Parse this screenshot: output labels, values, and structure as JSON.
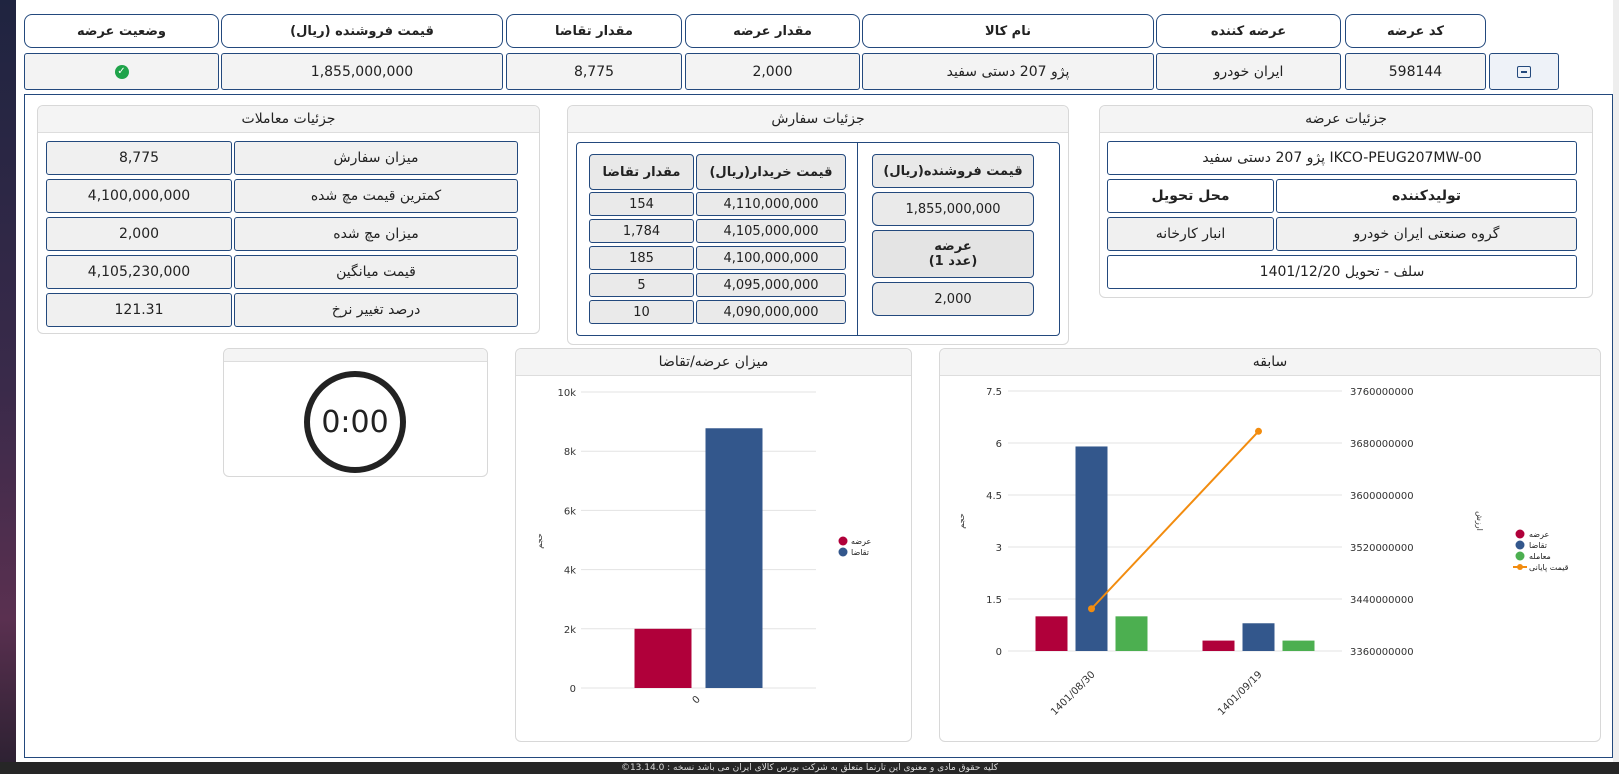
{
  "offer_table": {
    "headers": {
      "offer_status": "وضعیت عرضه",
      "seller_price": "قیمت فروشنده (ریال)",
      "demand_qty": "مقدار تقاضا",
      "offer_qty": "مقدار عرضه",
      "product_name": "نام کالا",
      "supplier": "عرضه کننده",
      "offer_code": "کد عرضه"
    },
    "row": {
      "status_icon": "check-circle-icon",
      "seller_price": "1,855,000,000",
      "demand_qty": "8,775",
      "offer_qty": "2,000",
      "product_name": "پژو 207 دستی سفید",
      "supplier": "ایران خودرو",
      "offer_code": "598144",
      "toggle_icon": "minus-square-icon"
    }
  },
  "offer_details": {
    "title": "جزئیات عرضه",
    "product_code": "پژو 207 دستی سفید IKCO-PEUG207MW-00",
    "producer_label": "تولیدکننده",
    "delivery_label": "محل تحویل",
    "producer_value": "گروه صنعتی ایران خودرو",
    "delivery_value": "انبار کارخانه",
    "settlement": "سلف - تحویل 1401/12/20"
  },
  "order_details": {
    "title": "جزئیات سفارش",
    "seller_price_header": "قیمت فروشنده(ریال)",
    "seller_price_value": "1,855,000,000",
    "offer_header_line1": "عرضه",
    "offer_header_line2": "(1 عدد)",
    "offer_value": "2,000",
    "buyer_price_header": "قیمت خریدار(ریال)",
    "demand_header": "مقدار تقاضا",
    "rows": [
      {
        "price": "4,110,000,000",
        "qty": "154"
      },
      {
        "price": "4,105,000,000",
        "qty": "1,784"
      },
      {
        "price": "4,100,000,000",
        "qty": "185"
      },
      {
        "price": "4,095,000,000",
        "qty": "5"
      },
      {
        "price": "4,090,000,000",
        "qty": "10"
      }
    ]
  },
  "trade_details": {
    "title": "جزئیات معاملات",
    "rows": [
      {
        "label": "میزان سفارش",
        "value": "8,775"
      },
      {
        "label": "کمترین قیمت مچ شده",
        "value": "4,100,000,000"
      },
      {
        "label": "میزان مچ شده",
        "value": "2,000"
      },
      {
        "label": "قیمت میانگین",
        "value": "4,105,230,000"
      },
      {
        "label": "درصد تغییر نرخ",
        "value": "121.31"
      }
    ]
  },
  "timer": {
    "value": "0:00"
  },
  "supply_demand_chart": {
    "title": "میزان عرضه/تقاضا"
  },
  "history_chart": {
    "title": "سابقه"
  },
  "footer": {
    "text": "©کلیه حقوق مادی و معنوی این تارنما متعلق به شرکت بورس کالای ایران می باشد نسخه : 13.14.0"
  },
  "colors": {
    "border": "#23497d",
    "offer": "#b0003a",
    "demand": "#33578c",
    "deal": "#4caf50",
    "price": "#f28c0f"
  },
  "chart_data": [
    {
      "type": "bar",
      "title": "میزان عرضه/تقاضا",
      "categories": [
        "0"
      ],
      "series": [
        {
          "name": "عرضه",
          "values": [
            2000
          ],
          "color": "#b0003a"
        },
        {
          "name": "تقاضا",
          "values": [
            8775
          ],
          "color": "#33578c"
        }
      ],
      "ylabel": "حجم",
      "ylim": [
        0,
        10000
      ],
      "yticks": [
        0,
        2000,
        4000,
        6000,
        8000,
        10000
      ],
      "ytick_labels": [
        "0",
        "2k",
        "4k",
        "6k",
        "8k",
        "10k"
      ],
      "legend": "right"
    },
    {
      "type": "bar",
      "title": "سابقه",
      "categories": [
        "1401/08/30",
        "1401/09/19"
      ],
      "series": [
        {
          "name": "عرضه",
          "values": [
            1,
            0.3
          ],
          "color": "#b0003a"
        },
        {
          "name": "تقاضا",
          "values": [
            5.9,
            0.8
          ],
          "color": "#33578c"
        },
        {
          "name": "معامله",
          "values": [
            1,
            0.3
          ],
          "color": "#4caf50"
        }
      ],
      "line_series": {
        "name": "قیمت پایانی",
        "values": [
          3425000000,
          3698000000
        ],
        "color": "#f28c0f"
      },
      "ylabel": "حجم",
      "ylabel_right": "ارزش",
      "ylim": [
        0,
        7.5
      ],
      "yticks": [
        0,
        1.5,
        3,
        4.5,
        6,
        7.5
      ],
      "ytick_labels": [
        "0",
        "1.5",
        "3",
        "4.5",
        "6",
        "7.5"
      ],
      "y2lim": [
        3360000000,
        3760000000
      ],
      "y2ticks": [
        3360000000,
        3440000000,
        3520000000,
        3600000000,
        3680000000,
        3760000000
      ],
      "y2tick_labels": [
        "3360000000",
        "3440000000",
        "3520000000",
        "3600000000",
        "3680000000",
        "3760000000"
      ],
      "legend": "right"
    }
  ]
}
